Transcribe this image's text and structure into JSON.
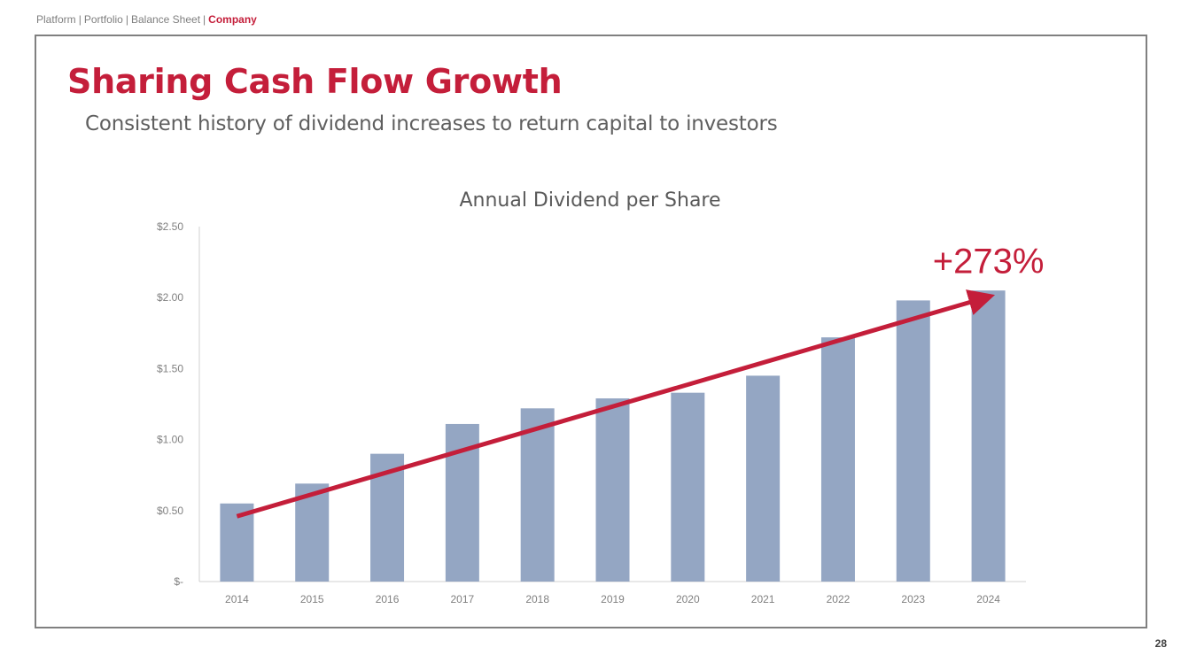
{
  "breadcrumb": {
    "items": [
      "Platform",
      "Portfolio",
      "Balance Sheet",
      "Company"
    ],
    "separator": "|",
    "active_index": 3
  },
  "page": {
    "title": "Sharing Cash Flow Growth",
    "subtitle": "Consistent history of dividend increases to return capital to investors",
    "number": "28"
  },
  "colors": {
    "accent": "#c41e3a",
    "bar": "#94a6c3",
    "axis": "#d0d0d0",
    "tick_text": "#808080",
    "title_text": "#595959",
    "frame": "#808080"
  },
  "chart_data": {
    "type": "bar",
    "title": "Annual Dividend per Share",
    "categories": [
      "2014",
      "2015",
      "2016",
      "2017",
      "2018",
      "2019",
      "2020",
      "2021",
      "2022",
      "2023",
      "2024"
    ],
    "values": [
      0.55,
      0.69,
      0.9,
      1.11,
      1.22,
      1.29,
      1.33,
      1.45,
      1.72,
      1.98,
      2.05
    ],
    "ylim": [
      0,
      2.5
    ],
    "yticks": [
      0,
      0.5,
      1.0,
      1.5,
      2.0,
      2.5
    ],
    "ytick_labels": [
      "$-",
      "$0.50",
      "$1.00",
      "$1.50",
      "$2.00",
      "$2.50"
    ],
    "xlabel": "",
    "ylabel": "",
    "grid": false,
    "annotation": {
      "text": "+273%",
      "arrow_from": {
        "category": "2014",
        "value": 0.46
      },
      "arrow_to": {
        "category": "2024",
        "value": 2.01
      }
    }
  }
}
